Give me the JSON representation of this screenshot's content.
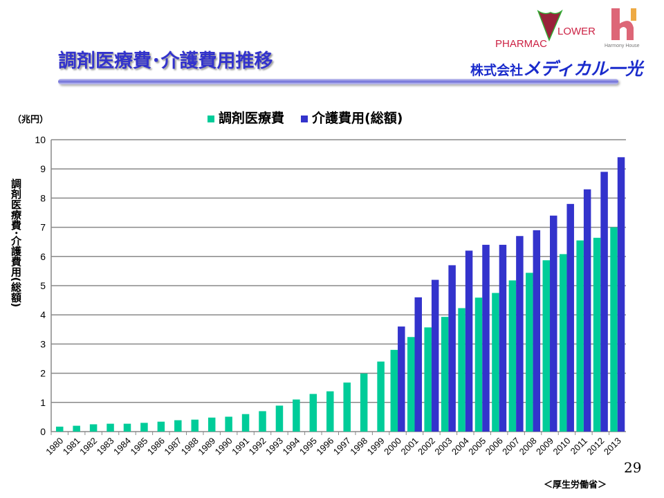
{
  "header": {
    "title": "調剤医療費･介護費用推移",
    "company_prefix": "株式会社",
    "company_name": "メディカル一光",
    "logos": [
      "PHARMACY FLOWER",
      "Harmony House"
    ]
  },
  "page_number": "29",
  "source": "＜厚生労働省＞",
  "chart_data": {
    "type": "bar",
    "unit_label": "（兆円）",
    "ylabel": "調剤医療費･介護費用(総額)",
    "ylim": [
      0,
      10
    ],
    "yticks": [
      0,
      1,
      2,
      3,
      4,
      5,
      6,
      7,
      8,
      9,
      10
    ],
    "grid": true,
    "legend_placement": "top",
    "categories": [
      "1980",
      "1981",
      "1982",
      "1983",
      "1984",
      "1985",
      "1986",
      "1987",
      "1988",
      "1989",
      "1990",
      "1991",
      "1992",
      "1993",
      "1994",
      "1995",
      "1996",
      "1997",
      "1998",
      "1999",
      "2000",
      "2001",
      "2002",
      "2003",
      "2004",
      "2005",
      "2006",
      "2007",
      "2008",
      "2009",
      "2010",
      "2011",
      "2012",
      "2013"
    ],
    "series": [
      {
        "name": "調剤医療費",
        "color": "#00cc99",
        "values": [
          0.17,
          0.2,
          0.25,
          0.27,
          0.27,
          0.3,
          0.34,
          0.39,
          0.41,
          0.48,
          0.51,
          0.6,
          0.7,
          0.89,
          1.1,
          1.29,
          1.38,
          1.68,
          1.99,
          2.4,
          2.8,
          3.24,
          3.57,
          3.93,
          4.23,
          4.59,
          4.75,
          5.18,
          5.44,
          5.87,
          6.08,
          6.55,
          6.64,
          7.0
        ]
      },
      {
        "name": "介護費用(総額)",
        "color": "#3333cc",
        "values": [
          null,
          null,
          null,
          null,
          null,
          null,
          null,
          null,
          null,
          null,
          null,
          null,
          null,
          null,
          null,
          null,
          null,
          null,
          null,
          null,
          3.6,
          4.6,
          5.2,
          5.7,
          6.2,
          6.4,
          6.4,
          6.7,
          6.9,
          7.4,
          7.8,
          8.3,
          8.9,
          9.4
        ]
      }
    ]
  }
}
